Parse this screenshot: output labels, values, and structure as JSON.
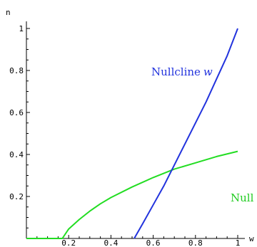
{
  "chart_data": {
    "type": "line",
    "xlabel": "w",
    "ylabel": "n",
    "xlim": [
      0,
      1.0
    ],
    "ylim": [
      0,
      1.0
    ],
    "x_ticks": [
      {
        "value": 0.2,
        "label": "0.2"
      },
      {
        "value": 0.4,
        "label": "0.4"
      },
      {
        "value": 0.6,
        "label": "0.6"
      },
      {
        "value": 0.8,
        "label": "0.8"
      },
      {
        "value": 1.0,
        "label": "1"
      }
    ],
    "y_ticks": [
      {
        "value": 0.2,
        "label": "0.2"
      },
      {
        "value": 0.4,
        "label": "0.4"
      },
      {
        "value": 0.6,
        "label": "0.6"
      },
      {
        "value": 0.8,
        "label": "0.8"
      },
      {
        "value": 1.0,
        "label": "1"
      }
    ],
    "series": [
      {
        "color": "#2233dd",
        "x": [
          0.51,
          0.55,
          0.6,
          0.65,
          0.7,
          0.75,
          0.8,
          0.85,
          0.9,
          0.95,
          1.0
        ],
        "y": [
          0.0,
          0.07,
          0.16,
          0.25,
          0.35,
          0.45,
          0.55,
          0.65,
          0.76,
          0.87,
          1.0
        ]
      },
      {
        "color": "#22dd22",
        "x": [
          0.0,
          0.17,
          0.2,
          0.25,
          0.3,
          0.35,
          0.4,
          0.5,
          0.6,
          0.7,
          0.8,
          0.9,
          1.0
        ],
        "y": [
          0.0,
          0.0,
          0.045,
          0.09,
          0.13,
          0.165,
          0.195,
          0.245,
          0.29,
          0.33,
          0.36,
          0.39,
          0.415
        ]
      }
    ],
    "annotations": [
      {
        "text_main": "Nullcline",
        "text_var": "w",
        "color": "#2233dd"
      },
      {
        "text_main": "Null",
        "text_var": "",
        "color": "#22cc22"
      }
    ]
  }
}
